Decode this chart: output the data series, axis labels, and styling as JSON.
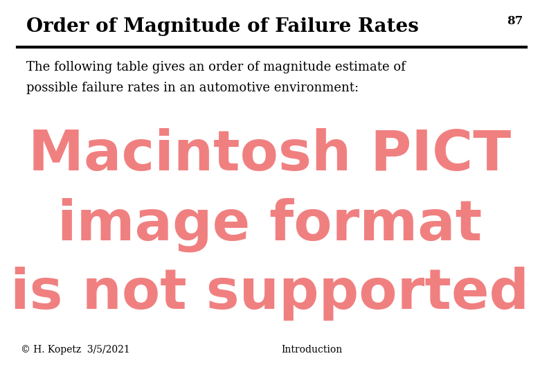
{
  "title": "Order of Magnitude of Failure Rates",
  "page_number": "87",
  "subtitle_line1": "The following table gives an order of magnitude estimate of",
  "subtitle_line2": "possible failure rates in an automotive environment:",
  "pict_line1": "Macintosh PICT",
  "pict_line2": "image format",
  "pict_line3": "is not supported",
  "footer_left": "© H. Kopetz  3/5/2021",
  "footer_right": "Introduction",
  "bg_color": "#ffffff",
  "title_color": "#000000",
  "title_fontsize": 20,
  "page_num_fontsize": 12,
  "subtitle_fontsize": 13,
  "pict_color": "#f08080",
  "pict_fontsize": 58,
  "footer_fontsize": 10,
  "line_color": "#000000"
}
